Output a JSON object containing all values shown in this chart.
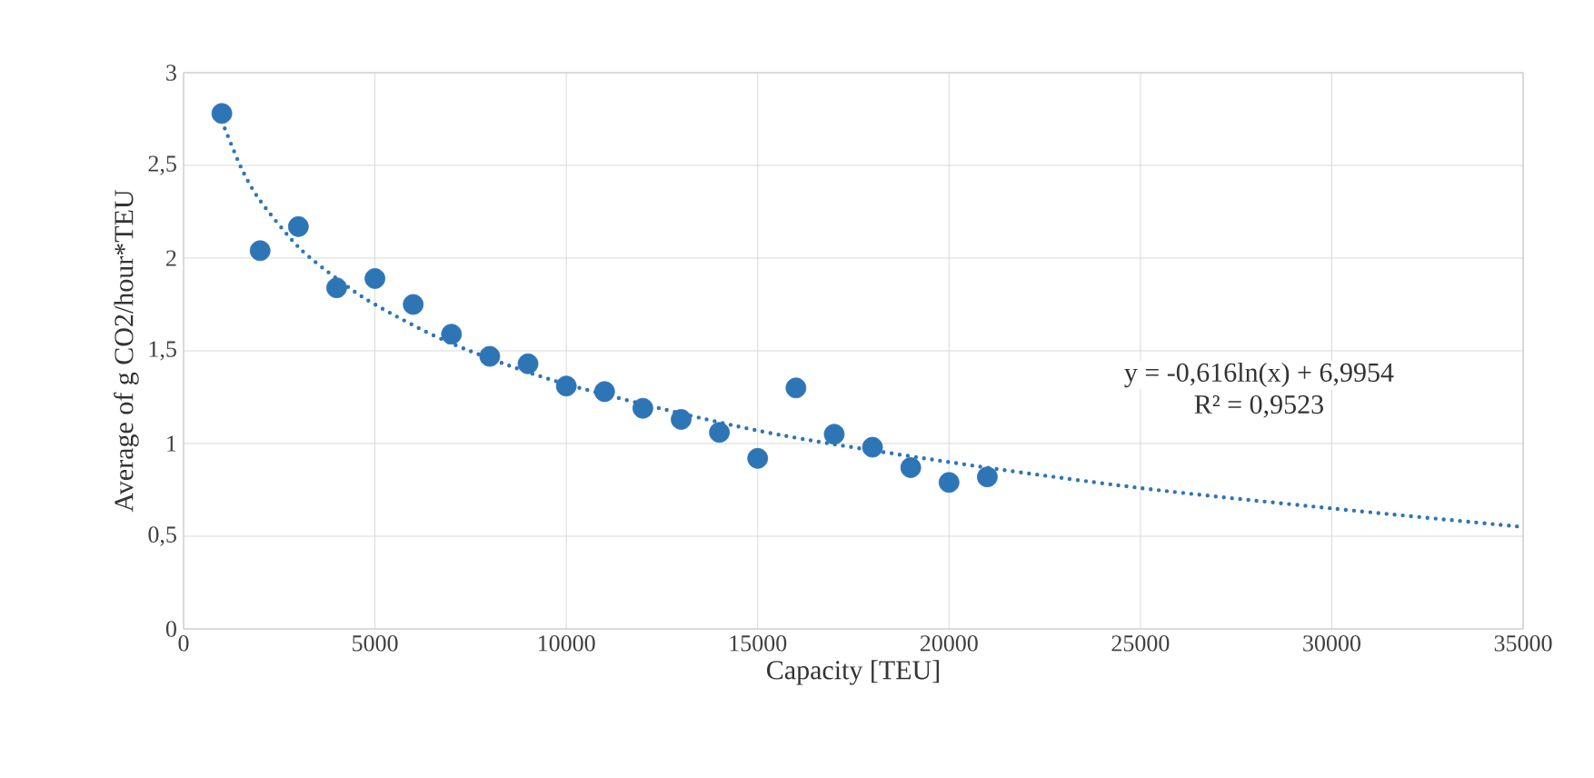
{
  "chart_data": {
    "type": "scatter",
    "xlabel": "Capacity [TEU]",
    "ylabel": "Average of g CO2/hour*TEU",
    "xlim": [
      0,
      35000
    ],
    "xticks": [
      0,
      5000,
      10000,
      15000,
      20000,
      25000,
      30000,
      35000
    ],
    "ylim": [
      0,
      3
    ],
    "yticks": [
      0,
      {
        "value": 0.5,
        "label": "0,5"
      },
      1,
      {
        "value": 1.5,
        "label": "1,5"
      },
      2,
      {
        "value": 2.5,
        "label": "2,5"
      },
      3
    ],
    "grid": true,
    "series": [
      {
        "type": "scatter",
        "marker": "circle",
        "color": "#2e75b6",
        "x": [
          1000,
          2000,
          3000,
          4000,
          5000,
          6000,
          7000,
          8000,
          9000,
          10000,
          11000,
          12000,
          13000,
          14000,
          15000,
          16000,
          17000,
          18000,
          19000,
          20000,
          21000
        ],
        "values": [
          2.78,
          2.04,
          2.17,
          1.84,
          1.89,
          1.75,
          1.59,
          1.47,
          1.43,
          1.31,
          1.28,
          1.19,
          1.13,
          1.06,
          0.92,
          1.3,
          1.05,
          0.98,
          0.87,
          0.79,
          0.82
        ]
      },
      {
        "type": "line",
        "color": "#2e75b6",
        "line_style": "dotted",
        "marker": "none",
        "x": [
          1000,
          1500,
          2000,
          3000,
          4000,
          5000,
          7000,
          10000,
          15000,
          20000,
          25000,
          30000,
          35000
        ],
        "values": [
          2.74,
          2.49,
          2.31,
          2.06,
          1.89,
          1.75,
          1.54,
          1.32,
          1.07,
          0.9,
          0.76,
          0.65,
          0.55
        ]
      }
    ],
    "annotations": [
      "y = -0,616ln(x)  + 6,9954",
      "R² = 0,9523"
    ]
  }
}
